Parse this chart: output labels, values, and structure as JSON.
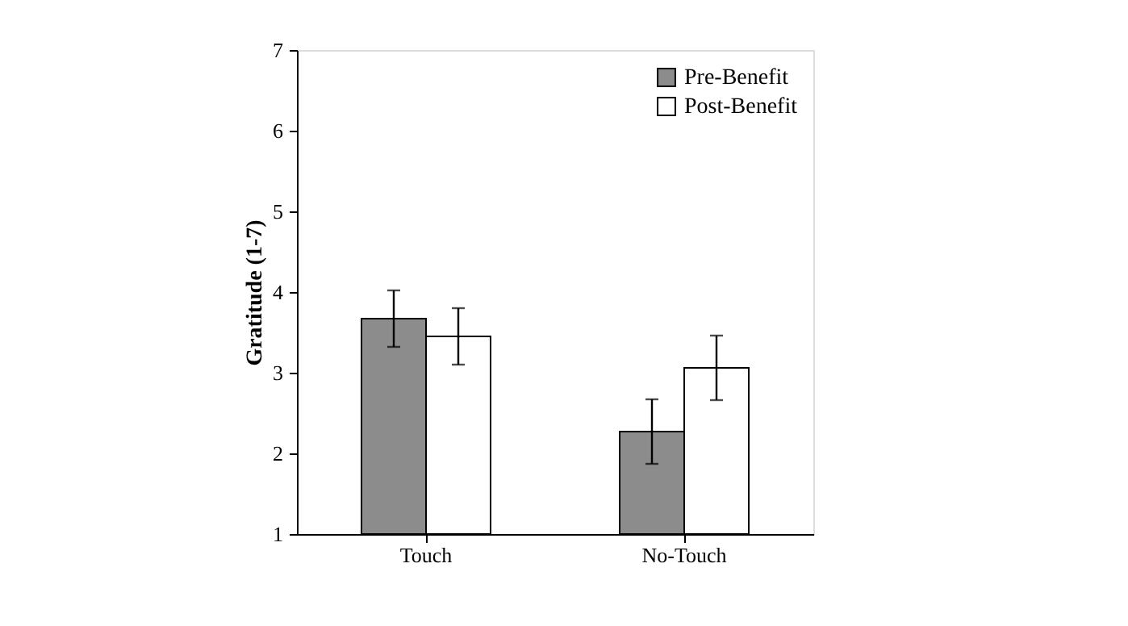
{
  "chart_data": {
    "type": "bar",
    "ylabel": "Gratitude (1-7)",
    "categories": [
      "Touch",
      "No-Touch"
    ],
    "series": [
      {
        "name": "Pre-Benefit",
        "color": "#8c8c8c",
        "values": [
          3.67,
          2.27
        ],
        "errors": [
          0.35,
          0.4
        ]
      },
      {
        "name": "Post-Benefit",
        "color": "#ffffff",
        "values": [
          3.45,
          3.06
        ],
        "errors": [
          0.35,
          0.4
        ]
      }
    ],
    "ylim": [
      1,
      7
    ],
    "yticks": [
      1,
      2,
      3,
      4,
      5,
      6,
      7
    ],
    "grid": false,
    "legend": "top right"
  }
}
